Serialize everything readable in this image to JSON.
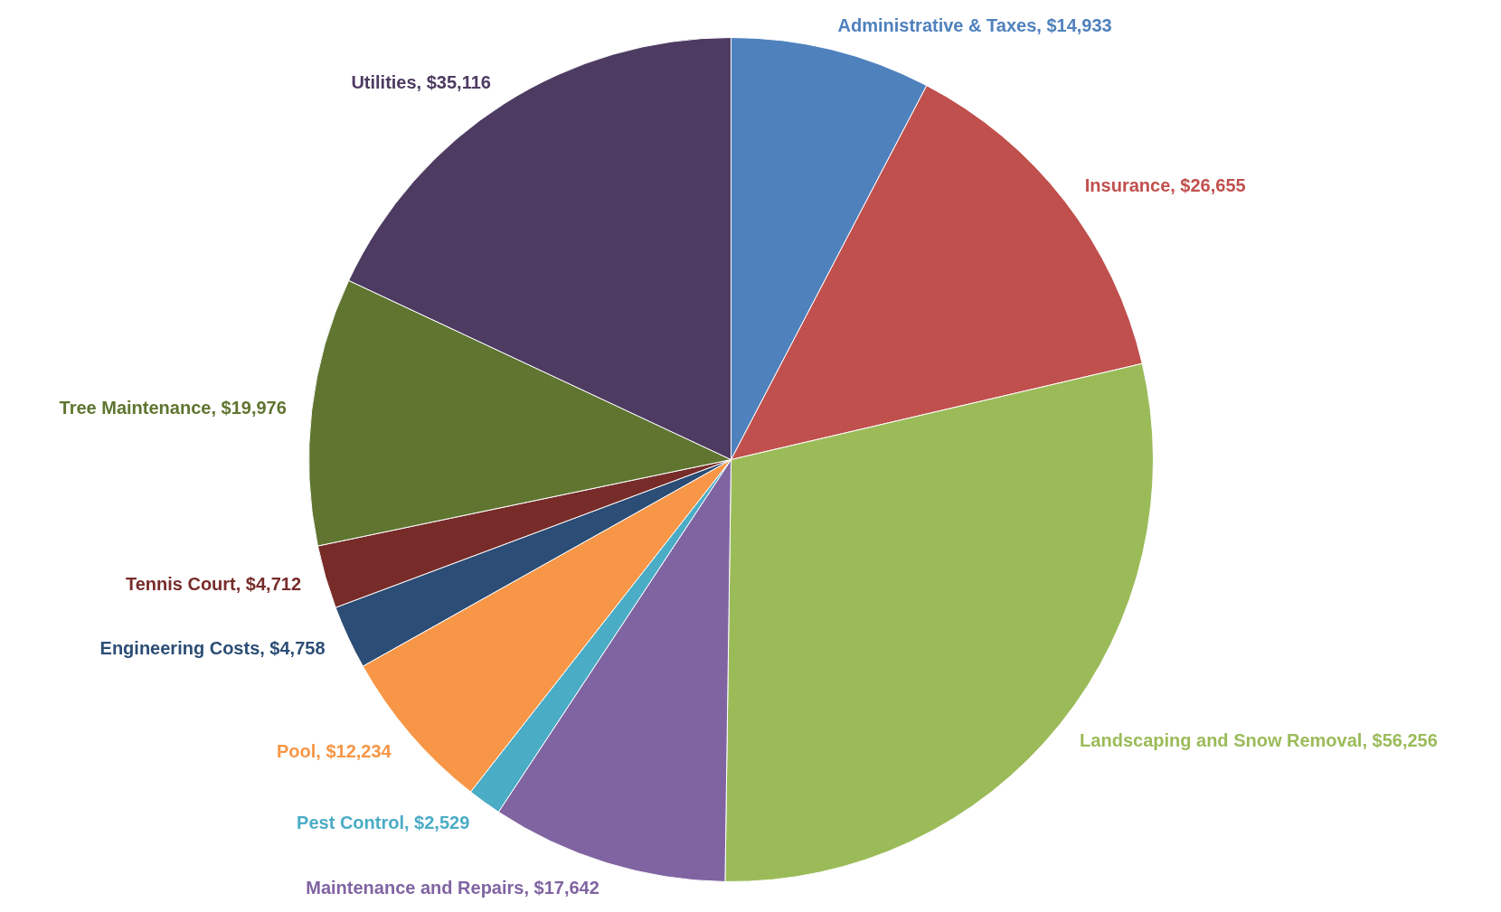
{
  "chart_data": {
    "type": "pie",
    "categories": [
      "Administrative & Taxes",
      "Insurance",
      "Landscaping and Snow Removal",
      "Maintenance and Repairs",
      "Pest Control",
      "Pool",
      "Engineering Costs",
      "Tennis Court",
      "Tree Maintenance",
      "Utilities"
    ],
    "values": [
      14933,
      26655,
      56256,
      17642,
      2529,
      12234,
      4758,
      4712,
      19976,
      35116
    ],
    "value_labels": [
      "$14,933",
      "$26,655",
      "$56,256",
      "$17,642",
      "$2,529",
      "$12,234",
      "$4,758",
      "$4,712",
      "$19,976",
      "$35,116"
    ],
    "colors": [
      "#4f81bd",
      "#c0504d",
      "#9bbb59",
      "#8064a2",
      "#4bacc6",
      "#f79646",
      "#2c4d75",
      "#772c2a",
      "#5f7530",
      "#4d3b62"
    ],
    "legend": false
  }
}
